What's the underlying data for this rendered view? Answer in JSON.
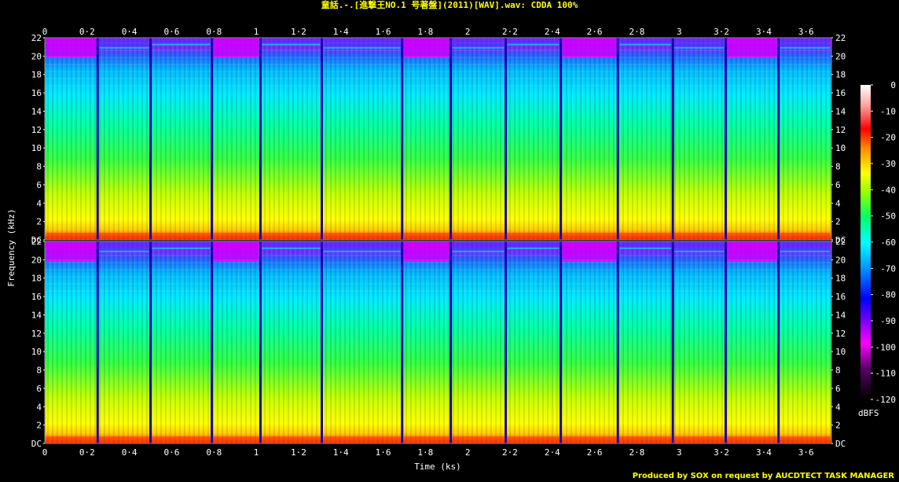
{
  "chart_data": {
    "type": "heatmap",
    "title": "童話.-.[進撃王NO.1 号著盤](2011)[WAV].wav: CDDA 100%",
    "xlabel": "Time (ks)",
    "ylabel": "Frequency (kHz)",
    "x_ticks": [
      "0",
      "0·2",
      "0·4",
      "0·6",
      "0·8",
      "1",
      "1·2",
      "1·4",
      "1·6",
      "1·8",
      "2",
      "2·2",
      "2·4",
      "2·6",
      "2·8",
      "3",
      "3·2",
      "3·4",
      "3·6"
    ],
    "y_ticks": [
      "DC",
      "2",
      "4",
      "6",
      "8",
      "10",
      "12",
      "14",
      "16",
      "18",
      "20",
      "22"
    ],
    "xlim": [
      0,
      3.72
    ],
    "ylim": [
      0,
      22
    ],
    "channels": 2,
    "colorbar": {
      "unit": "dBFS",
      "ticks": [
        "0",
        "-10",
        "-20",
        "-30",
        "-40",
        "-50",
        "-60",
        "-70",
        "-80",
        "-90",
        "-100",
        "-110",
        "-120"
      ],
      "range": [
        -120,
        0
      ]
    },
    "track_boundaries_ks": [
      0.25,
      0.5,
      0.79,
      1.02,
      1.31,
      1.69,
      1.92,
      2.18,
      2.44,
      2.71,
      2.97,
      3.22,
      3.47
    ],
    "colors": [
      "#000000",
      "#5a006a",
      "#ff00ff",
      "#0000ff",
      "#0099ff",
      "#00ffff",
      "#00ff66",
      "#99ff00",
      "#ffff00",
      "#ff8800",
      "#ff0000",
      "#ff9999",
      "#ffffff"
    ]
  },
  "footer": "Produced by SOX on request by AUCDTECT TASK MANAGER"
}
